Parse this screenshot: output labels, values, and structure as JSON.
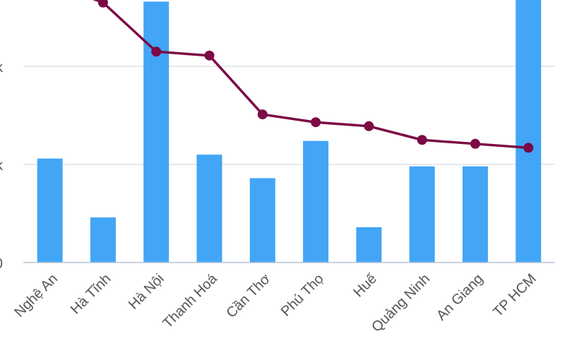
{
  "chart_data": {
    "type": "bar",
    "title": "",
    "xlabel": "",
    "ylabel": "",
    "categories": [
      "Nghệ An",
      "Hà Tĩnh",
      "Hà Nội",
      "Thanh Hoá",
      "Cần Thơ",
      "Phú Thọ",
      "Huế",
      "Quảng Ninh",
      "An Giang",
      "TP HCM"
    ],
    "y_tick_labels": [
      "0",
      "k",
      "k"
    ],
    "grid": true,
    "legend": "none",
    "series": [
      {
        "type": "bar",
        "color": "#42A5F5",
        "values": [
          1.06,
          0.46,
          2.66,
          1.1,
          0.86,
          1.24,
          0.36,
          0.98,
          0.98,
          2.84
        ]
      },
      {
        "type": "line",
        "color": "#7B0A45",
        "values": [
          2.85,
          2.65,
          2.15,
          2.11,
          1.51,
          1.43,
          1.39,
          1.25,
          1.21,
          1.17
        ]
      }
    ],
    "ylim": [
      0,
      2.9
    ]
  }
}
